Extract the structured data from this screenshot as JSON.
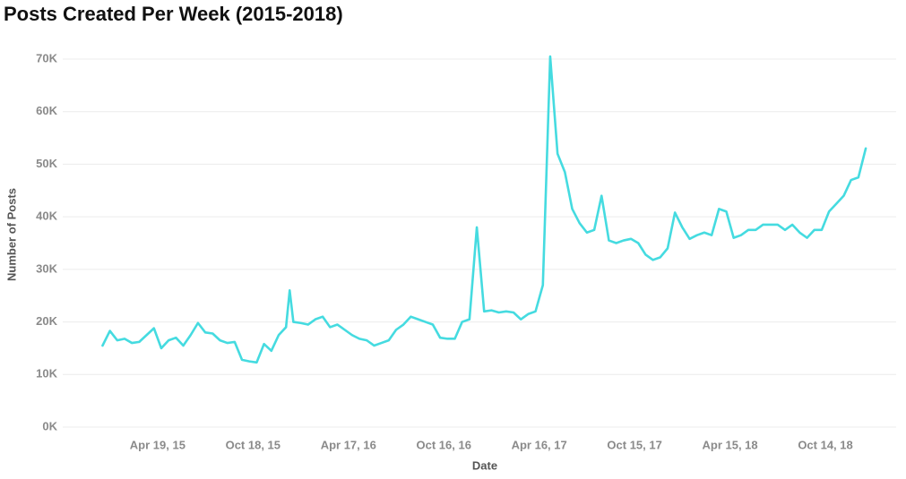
{
  "chart_data": {
    "type": "line",
    "title": "Posts Created Per Week (2015-2018)",
    "x_label": "Date",
    "y_label": "Number of Posts",
    "grid": true,
    "x": [
      "2015-01-04",
      "2015-01-18",
      "2015-02-01",
      "2015-02-15",
      "2015-03-01",
      "2015-03-15",
      "2015-03-29",
      "2015-04-12",
      "2015-04-26",
      "2015-05-10",
      "2015-05-24",
      "2015-06-07",
      "2015-06-21",
      "2015-07-05",
      "2015-07-19",
      "2015-08-02",
      "2015-08-16",
      "2015-08-30",
      "2015-09-13",
      "2015-09-27",
      "2015-10-11",
      "2015-10-25",
      "2015-11-08",
      "2015-11-22",
      "2015-12-06",
      "2015-12-20",
      "2015-12-27",
      "2016-01-03",
      "2016-01-17",
      "2016-01-31",
      "2016-02-14",
      "2016-02-28",
      "2016-03-13",
      "2016-03-27",
      "2016-04-10",
      "2016-04-24",
      "2016-05-08",
      "2016-05-22",
      "2016-06-05",
      "2016-06-19",
      "2016-07-03",
      "2016-07-17",
      "2016-07-31",
      "2016-08-14",
      "2016-08-28",
      "2016-09-11",
      "2016-09-25",
      "2016-10-09",
      "2016-10-23",
      "2016-11-06",
      "2016-11-20",
      "2016-12-04",
      "2016-12-18",
      "2017-01-01",
      "2017-01-15",
      "2017-01-29",
      "2017-02-12",
      "2017-02-26",
      "2017-03-12",
      "2017-03-26",
      "2017-04-09",
      "2017-04-23",
      "2017-05-07",
      "2017-05-21",
      "2017-06-04",
      "2017-06-18",
      "2017-07-02",
      "2017-07-16",
      "2017-07-30",
      "2017-08-13",
      "2017-08-27",
      "2017-09-10",
      "2017-09-24",
      "2017-10-08",
      "2017-10-22",
      "2017-11-05",
      "2017-11-19",
      "2017-12-03",
      "2017-12-17",
      "2017-12-31",
      "2018-01-14",
      "2018-01-28",
      "2018-02-11",
      "2018-02-25",
      "2018-03-11",
      "2018-03-25",
      "2018-04-08",
      "2018-04-22",
      "2018-05-06",
      "2018-05-20",
      "2018-06-03",
      "2018-06-17",
      "2018-07-01",
      "2018-07-15",
      "2018-07-29",
      "2018-08-12",
      "2018-08-26",
      "2018-09-09",
      "2018-09-23",
      "2018-10-07",
      "2018-10-21",
      "2018-11-04",
      "2018-11-18",
      "2018-12-02",
      "2018-12-16",
      "2018-12-30"
    ],
    "series": [
      {
        "name": "Posts",
        "color": "#45dbe0",
        "values": [
          15500,
          18300,
          16500,
          16800,
          16000,
          16200,
          17500,
          18800,
          15000,
          16500,
          17000,
          15500,
          17500,
          19800,
          18000,
          17800,
          16500,
          16000,
          16200,
          12800,
          12500,
          12300,
          15800,
          14500,
          17500,
          19000,
          26000,
          20000,
          19800,
          19500,
          20500,
          21000,
          19000,
          19500,
          18500,
          17500,
          16800,
          16500,
          15500,
          16000,
          16500,
          18500,
          19500,
          21000,
          20500,
          20000,
          19500,
          17000,
          16800,
          16800,
          20000,
          20500,
          38000,
          22000,
          22200,
          21800,
          22000,
          21800,
          20500,
          21500,
          22000,
          27000,
          70500,
          52000,
          48500,
          41500,
          38800,
          37000,
          37500,
          44000,
          35500,
          35000,
          35500,
          35800,
          35000,
          32800,
          31800,
          32300,
          34000,
          40800,
          38000,
          35800,
          36500,
          37000,
          36500,
          41500,
          41000,
          36000,
          36500,
          37500,
          37500,
          38500,
          38500,
          38500,
          37500,
          38500,
          37000,
          36000,
          37500,
          37500,
          41000,
          42500,
          44000,
          47000,
          47500,
          53000
        ]
      }
    ],
    "xlim": [
      "2014-10-20",
      "2019-02-26"
    ],
    "xticks": [
      {
        "value": "2015-04-19",
        "label": "Apr 19, 15"
      },
      {
        "value": "2015-10-18",
        "label": "Oct 18, 15"
      },
      {
        "value": "2016-04-17",
        "label": "Apr 17, 16"
      },
      {
        "value": "2016-10-16",
        "label": "Oct 16, 16"
      },
      {
        "value": "2017-04-16",
        "label": "Apr 16, 17"
      },
      {
        "value": "2017-10-15",
        "label": "Oct 15, 17"
      },
      {
        "value": "2018-04-15",
        "label": "Apr 15, 18"
      },
      {
        "value": "2018-10-14",
        "label": "Oct 14, 18"
      }
    ],
    "ylim": [
      0,
      70000
    ],
    "yticks": [
      {
        "value": 0,
        "label": "0K"
      },
      {
        "value": 10000,
        "label": "10K"
      },
      {
        "value": 20000,
        "label": "20K"
      },
      {
        "value": 30000,
        "label": "30K"
      },
      {
        "value": 40000,
        "label": "40K"
      },
      {
        "value": 50000,
        "label": "50K"
      },
      {
        "value": 60000,
        "label": "60K"
      },
      {
        "value": 70000,
        "label": "70K"
      }
    ]
  }
}
